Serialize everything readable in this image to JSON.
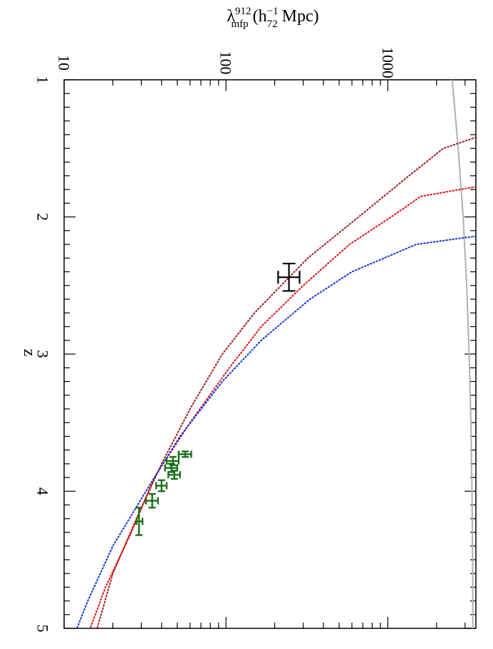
{
  "chart_data": {
    "type": "line",
    "orientation": "rotated-90",
    "xlabel": "z",
    "ylabel": {
      "symbol": "λ",
      "sup": "912",
      "sub": "mfp",
      "open": " (h",
      "unit_sup": "−1",
      "unit_sub": "72",
      "close": " Mpc)"
    },
    "xlim": [
      1,
      5
    ],
    "ylim": [
      10,
      3500
    ],
    "yscale": "log",
    "x_ticks": [
      "1",
      "2",
      "3",
      "4",
      "5"
    ],
    "y_ticks": [
      "10",
      "100",
      "1000"
    ],
    "legend": "none",
    "grid": false,
    "colors": {
      "gray": "#b0b0b0",
      "darkred": "#a01818",
      "red": "#e01010",
      "blue": "#1030e0",
      "green": "#1a6e1a",
      "black": "#000000"
    },
    "series": [
      {
        "color": "gray",
        "style": "solid",
        "x": [
          1.0,
          1.5,
          2.0,
          2.5,
          3.0,
          3.5,
          4.0,
          4.5,
          5.0
        ],
        "y": [
          2500,
          2720,
          2920,
          3070,
          3180,
          3260,
          3310,
          3340,
          3350
        ]
      },
      {
        "color": "darkred",
        "style": "dotted",
        "x": [
          1.42,
          1.5,
          1.7,
          2.0,
          2.3,
          2.7,
          3.0,
          3.4,
          3.8,
          4.2,
          4.6,
          5.0
        ],
        "y": [
          3500,
          2200,
          1350,
          660,
          320,
          150,
          95,
          60,
          40,
          28,
          20,
          16
        ]
      },
      {
        "color": "red",
        "style": "dotted",
        "x": [
          1.78,
          1.85,
          2.0,
          2.2,
          2.5,
          2.8,
          3.1,
          3.5,
          3.9,
          4.3,
          4.7,
          5.0
        ],
        "y": [
          3500,
          1600,
          1050,
          580,
          300,
          165,
          105,
          60,
          36,
          26,
          18,
          14.5
        ]
      },
      {
        "color": "blue",
        "style": "dotted",
        "x": [
          2.14,
          2.2,
          2.4,
          2.6,
          2.9,
          3.2,
          3.6,
          4.0,
          4.4,
          4.8,
          5.0
        ],
        "y": [
          3500,
          1500,
          600,
          330,
          165,
          95,
          52,
          32,
          20,
          14,
          12
        ]
      }
    ],
    "measurements": [
      {
        "color": "black",
        "z": 2.44,
        "z_err": 0.1,
        "lambda": 245,
        "lambda_lo": 210,
        "lambda_hi": 285
      },
      {
        "color": "green",
        "z": 3.73,
        "z_err": 0.02,
        "lambda": 56,
        "lambda_lo": 51,
        "lambda_hi": 61
      },
      {
        "color": "green",
        "z": 3.78,
        "z_err": 0.03,
        "lambda": 47,
        "lambda_lo": 43,
        "lambda_hi": 51
      },
      {
        "color": "green",
        "z": 3.83,
        "z_err": 0.03,
        "lambda": 46,
        "lambda_lo": 42,
        "lambda_hi": 50
      },
      {
        "color": "green",
        "z": 3.88,
        "z_err": 0.03,
        "lambda": 48,
        "lambda_lo": 44,
        "lambda_hi": 52
      },
      {
        "color": "green",
        "z": 3.96,
        "z_err": 0.04,
        "lambda": 40,
        "lambda_lo": 37,
        "lambda_hi": 43
      },
      {
        "color": "green",
        "z": 4.07,
        "z_err": 0.05,
        "lambda": 35,
        "lambda_lo": 32,
        "lambda_hi": 38
      },
      {
        "color": "green",
        "z": 4.22,
        "z_err": 0.1,
        "lambda": 29,
        "lambda_lo": 28,
        "lambda_hi": 30.5
      }
    ]
  }
}
